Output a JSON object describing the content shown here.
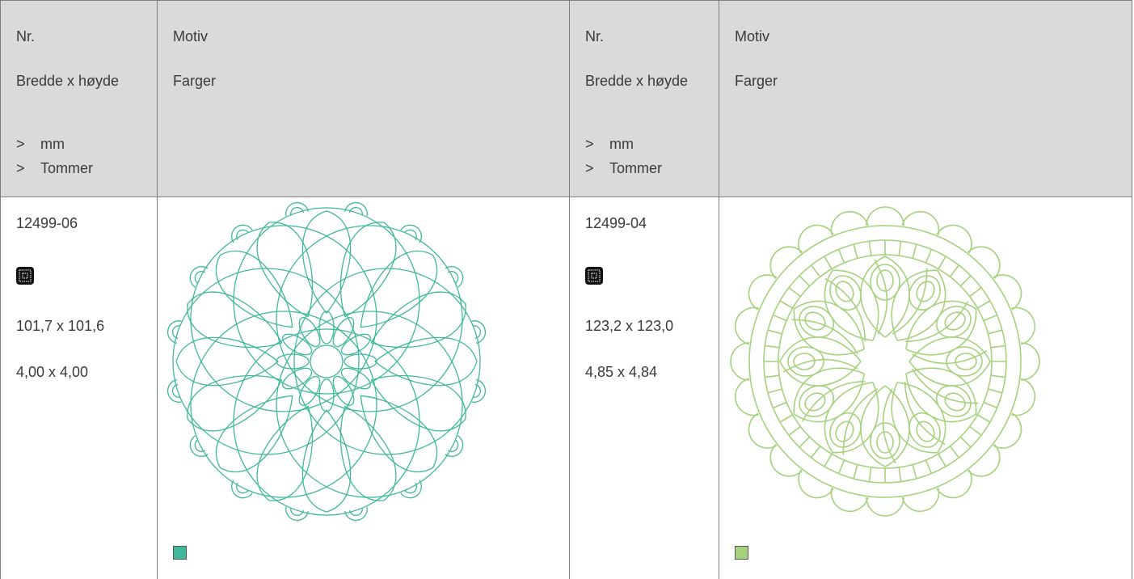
{
  "table": {
    "header": [
      {
        "nr": "Nr.",
        "size": "Bredde x høyde",
        "units": [
          "mm",
          "Tommer"
        ],
        "motif": "Motiv",
        "colors": "Farger"
      },
      {
        "nr": "Nr.",
        "size": "Bredde x høyde",
        "units": [
          "mm",
          "Tommer"
        ],
        "motif": "Motiv",
        "colors": "Farger"
      }
    ],
    "rows": [
      {
        "nr": "12499-06",
        "size_mm": "101,7 x 101,6",
        "size_in": "4,00 x 4,00",
        "color": "#3fb89b"
      },
      {
        "nr": "12499-04",
        "size_mm": "123,2 x 123,0",
        "size_in": "4,85 x 4,84",
        "color": "#a5d27c"
      }
    ]
  }
}
